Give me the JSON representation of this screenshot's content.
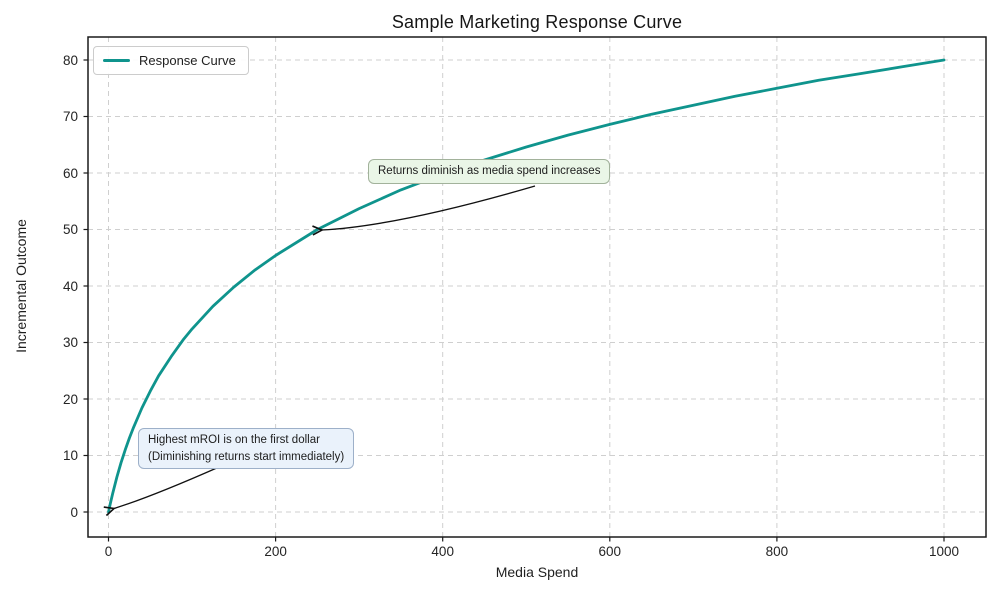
{
  "chart_data": {
    "type": "line",
    "title": "Sample Marketing Response Curve",
    "xlabel": "Media Spend",
    "ylabel": "Incremental Outcome",
    "xlim": [
      0,
      1000
    ],
    "ylim": [
      0,
      80
    ],
    "xticks": [
      0,
      200,
      400,
      600,
      800,
      1000
    ],
    "yticks": [
      0,
      10,
      20,
      30,
      40,
      50,
      60,
      70,
      80
    ],
    "grid": true,
    "grid_style": "dashed",
    "legend": {
      "position": "upper left",
      "entries": [
        "Response Curve"
      ]
    },
    "series": [
      {
        "name": "Response Curve",
        "color": "#0f948d",
        "points": [
          [
            0,
            0
          ],
          [
            2,
            1.4
          ],
          [
            5,
            3.3
          ],
          [
            10,
            6.2
          ],
          [
            15,
            8.7
          ],
          [
            20,
            11.0
          ],
          [
            25,
            13.1
          ],
          [
            30,
            15.0
          ],
          [
            40,
            18.4
          ],
          [
            50,
            21.4
          ],
          [
            60,
            24.1
          ],
          [
            75,
            27.5
          ],
          [
            90,
            30.6
          ],
          [
            100,
            32.4
          ],
          [
            125,
            36.4
          ],
          [
            150,
            39.8
          ],
          [
            175,
            42.8
          ],
          [
            200,
            45.4
          ],
          [
            250,
            50.0
          ],
          [
            300,
            53.7
          ],
          [
            350,
            57.0
          ],
          [
            400,
            59.8
          ],
          [
            450,
            62.3
          ],
          [
            500,
            64.6
          ],
          [
            550,
            66.7
          ],
          [
            600,
            68.6
          ],
          [
            650,
            70.4
          ],
          [
            700,
            72.0
          ],
          [
            750,
            73.6
          ],
          [
            800,
            75.0
          ],
          [
            850,
            76.4
          ],
          [
            900,
            77.6
          ],
          [
            950,
            78.8
          ],
          [
            1000,
            80.0
          ]
        ]
      }
    ],
    "annotations": [
      {
        "id": "diminishing-returns",
        "lines": [
          "Returns diminish as media spend increases"
        ],
        "target_xy": [
          250,
          50
        ],
        "fill": "#eaf6e7",
        "border": "#a2b29b"
      },
      {
        "id": "highest-mroi",
        "lines": [
          "Highest mROI is on the first dollar",
          "(Diminishing returns start immediately)"
        ],
        "target_xy": [
          0,
          0
        ],
        "fill": "#eaf2fb",
        "border": "#9db0c9"
      }
    ]
  },
  "colors": {
    "curve": "#0f948d",
    "grid": "#cfcfcf",
    "spine": "#1a1a1a",
    "arrow": "#111111",
    "background": "#ffffff"
  }
}
